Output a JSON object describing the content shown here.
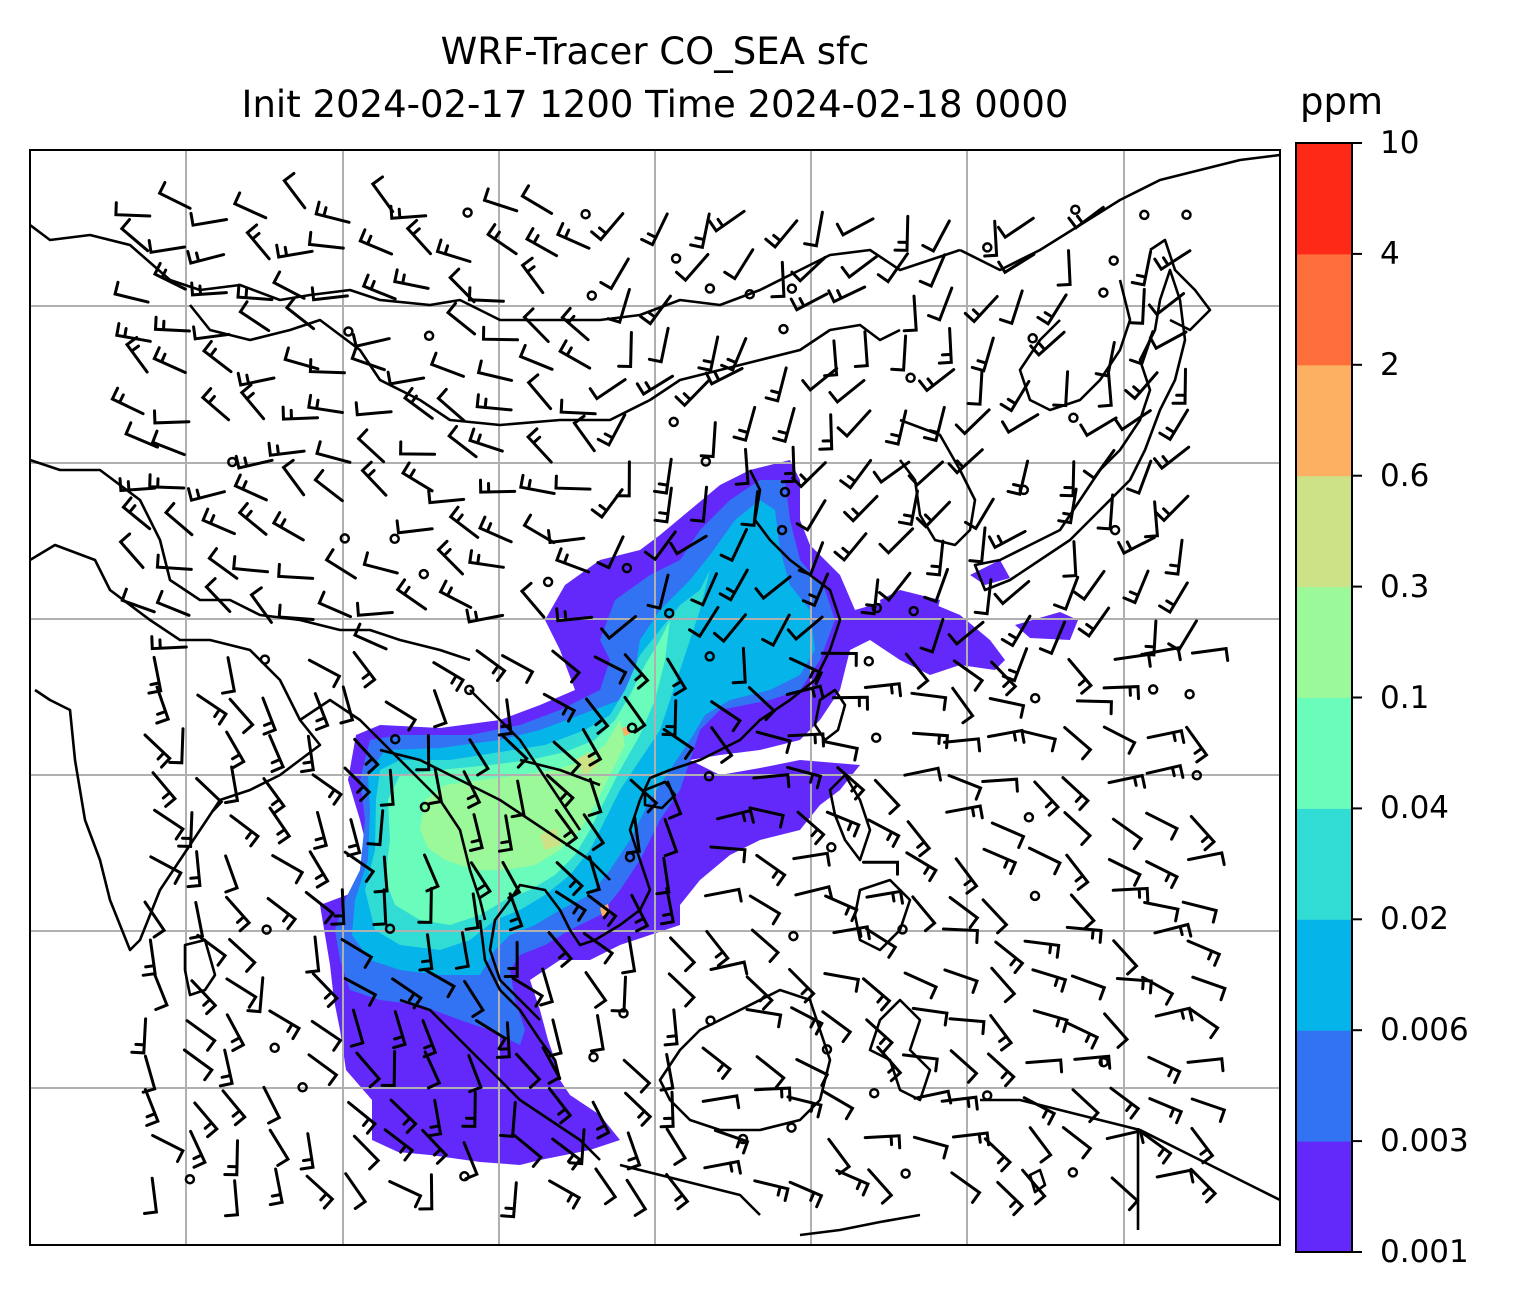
{
  "title": {
    "line1": "WRF-Tracer CO_SEA sfc",
    "line2": "Init 2024-02-17 1200 Time 2024-02-18 0000"
  },
  "colorbar": {
    "unit": "ppm",
    "levels": [
      "0.001",
      "0.003",
      "0.006",
      "0.02",
      "0.04",
      "0.1",
      "0.3",
      "0.6",
      "2",
      "4",
      "10"
    ],
    "colors": [
      "#6329fb",
      "#3273f4",
      "#05b4e9",
      "#31dcd5",
      "#6afcba",
      "#9bf99a",
      "#cde286",
      "#feb062",
      "#fe6f3c",
      "#fe2a17"
    ]
  },
  "map": {
    "region": "South-East Asia / East Asia",
    "gridlines": true,
    "features": [
      "coastlines",
      "country-borders",
      "wind-barbs",
      "calm-wind-circles",
      "tracer-concentration-fill"
    ]
  }
}
